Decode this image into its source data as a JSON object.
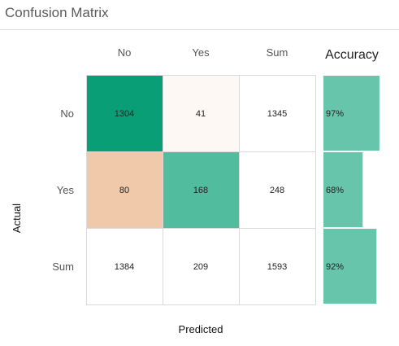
{
  "header": {
    "title": "Confusion Matrix"
  },
  "chart_data": {
    "type": "heatmap",
    "title": "",
    "xlabel": "Predicted",
    "ylabel": "Actual",
    "col_labels": [
      "No",
      "Yes",
      "Sum"
    ],
    "row_labels": [
      "No",
      "Yes",
      "Sum"
    ],
    "cells": [
      [
        1304,
        41,
        1345
      ],
      [
        80,
        168,
        248
      ],
      [
        1384,
        209,
        1593
      ]
    ],
    "cell_colors": [
      [
        "#0a9e77",
        "#fef8f5",
        "#ffffff"
      ],
      [
        "#f0c9aa",
        "#52bc9f",
        "#ffffff"
      ],
      [
        "#ffffff",
        "#ffffff",
        "#ffffff"
      ]
    ],
    "accuracy_label": "Accuracy",
    "accuracy": [
      0.97,
      0.68,
      0.92
    ],
    "accuracy_text": [
      "97%",
      "68%",
      "92%"
    ],
    "accuracy_color": "#66c5aa"
  }
}
